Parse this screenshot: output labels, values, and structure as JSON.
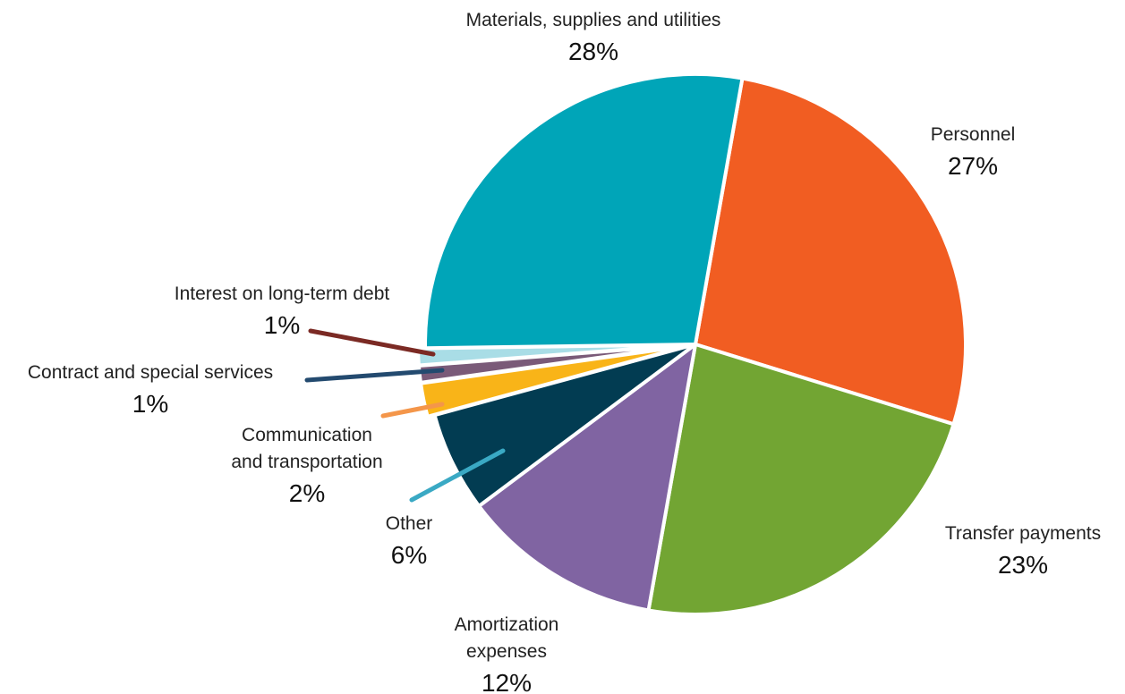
{
  "chart_data": {
    "type": "pie",
    "slices": [
      {
        "label": [
          "Personnel"
        ],
        "pct_label": "27%",
        "value": 27,
        "color": "#f15d22"
      },
      {
        "label": [
          "Transfer payments"
        ],
        "pct_label": "23%",
        "value": 23,
        "color": "#72a533"
      },
      {
        "label": [
          "Amortization",
          "expenses"
        ],
        "pct_label": "12%",
        "value": 12,
        "color": "#8064a2"
      },
      {
        "label": [
          "Other"
        ],
        "pct_label": "6%",
        "value": 6,
        "color": "#023c52",
        "leader_color": "#3aa9c4"
      },
      {
        "label": [
          "Communication",
          "and transportation"
        ],
        "pct_label": "2%",
        "value": 2,
        "color": "#f9b418",
        "leader_color": "#f4964a"
      },
      {
        "label": [
          "Contract and special services"
        ],
        "pct_label": "1%",
        "value": 1,
        "color": "#7a5a78",
        "leader_color": "#234a6f"
      },
      {
        "label": [
          "Interest on long-term debt"
        ],
        "pct_label": "1%",
        "value": 1,
        "color": "#a9dde6",
        "leader_color": "#7b2a24"
      },
      {
        "label": [
          "Materials, supplies and utilities"
        ],
        "pct_label": "28%",
        "value": 28,
        "color": "#00a5b8"
      }
    ]
  }
}
